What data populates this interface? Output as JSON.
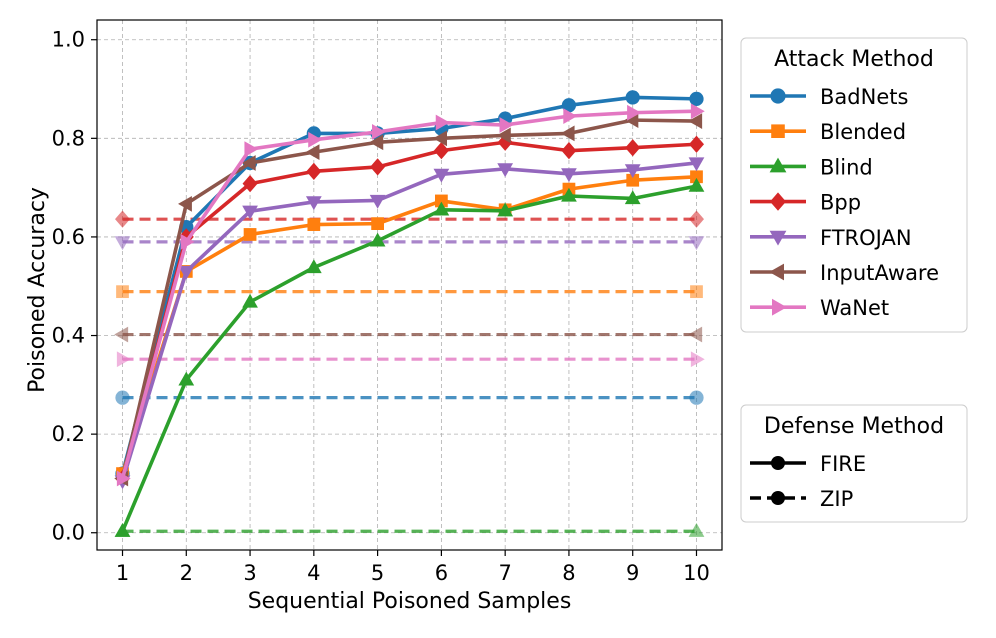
{
  "chart_data": {
    "type": "line",
    "xlabel": "Sequential Poisoned Samples",
    "ylabel": "Poisoned Accuracy",
    "x": [
      1,
      2,
      3,
      4,
      5,
      6,
      7,
      8,
      9,
      10
    ],
    "xticks": [
      "1",
      "2",
      "3",
      "4",
      "5",
      "6",
      "7",
      "8",
      "9",
      "10"
    ],
    "yticks": [
      "0.0",
      "0.2",
      "0.4",
      "0.6",
      "0.8",
      "1.0"
    ],
    "xlim": [
      0.6,
      10.4
    ],
    "ylim": [
      -0.035,
      1.04
    ],
    "grid": true,
    "series": [
      {
        "name": "BadNets",
        "color": "#1f77b4",
        "marker": "circle",
        "fire": [
          0.12,
          0.62,
          0.75,
          0.81,
          0.81,
          0.82,
          0.84,
          0.867,
          0.883,
          0.88
        ],
        "zip": 0.274
      },
      {
        "name": "Blended",
        "color": "#ff7f0e",
        "marker": "square",
        "fire": [
          0.12,
          0.53,
          0.605,
          0.625,
          0.627,
          0.673,
          0.655,
          0.697,
          0.715,
          0.722
        ],
        "zip": 0.489
      },
      {
        "name": "Blind",
        "color": "#2ca02c",
        "marker": "triangle-up",
        "fire": [
          0.003,
          0.31,
          0.468,
          0.538,
          0.592,
          0.655,
          0.653,
          0.683,
          0.678,
          0.703
        ],
        "zip": 0.003
      },
      {
        "name": "Bpp",
        "color": "#d62728",
        "marker": "diamond",
        "fire": [
          0.11,
          0.6,
          0.708,
          0.733,
          0.742,
          0.775,
          0.792,
          0.775,
          0.781,
          0.788
        ],
        "zip": 0.636
      },
      {
        "name": "FTROJAN",
        "color": "#9467bd",
        "marker": "triangle-down",
        "fire": [
          0.105,
          0.53,
          0.652,
          0.671,
          0.674,
          0.727,
          0.738,
          0.728,
          0.736,
          0.75
        ],
        "zip": 0.59
      },
      {
        "name": "InputAware",
        "color": "#8c564b",
        "marker": "triangle-left",
        "fire": [
          0.11,
          0.667,
          0.75,
          0.772,
          0.792,
          0.8,
          0.806,
          0.81,
          0.837,
          0.835
        ],
        "zip": 0.402
      },
      {
        "name": "WaNet",
        "color": "#e377c2",
        "marker": "triangle-right",
        "fire": [
          0.11,
          0.59,
          0.778,
          0.797,
          0.813,
          0.832,
          0.827,
          0.845,
          0.852,
          0.855
        ],
        "zip": 0.352
      }
    ],
    "legend_attack": {
      "title": "Attack Method",
      "entries": [
        "BadNets",
        "Blended",
        "Blind",
        "Bpp",
        "FTROJAN",
        "InputAware",
        "WaNet"
      ]
    },
    "legend_defense": {
      "title": "Defense Method",
      "entries": [
        {
          "label": "FIRE",
          "linestyle": "solid"
        },
        {
          "label": "ZIP",
          "linestyle": "dashed"
        }
      ]
    }
  }
}
